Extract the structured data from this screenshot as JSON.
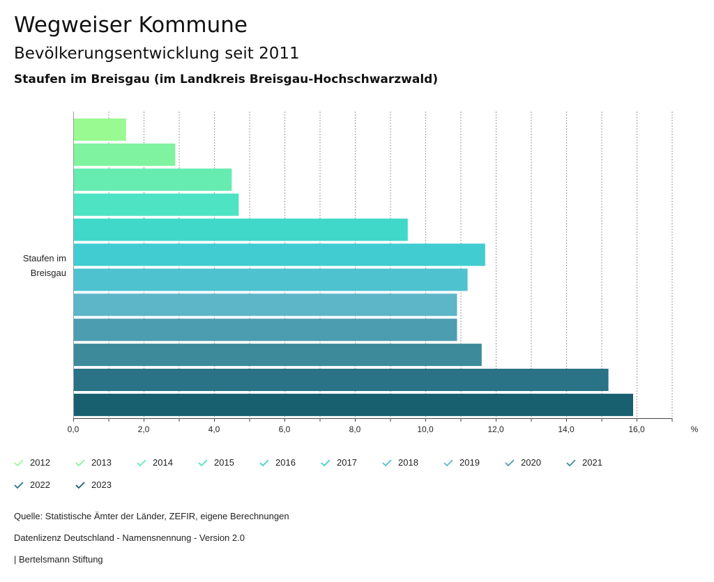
{
  "header": {
    "title": "Wegweiser Kommune",
    "subtitle": "Bevölkerungsentwicklung seit 2011",
    "place": "Staufen im Breisgau (im Landkreis Breisgau-Hochschwarzwald)"
  },
  "chart_data": {
    "type": "bar",
    "orientation": "horizontal",
    "category_label": [
      "Staufen im",
      "Breisgau"
    ],
    "unit": "%",
    "xlim": [
      0,
      17
    ],
    "ticks": [
      "0,0",
      "2,0",
      "4,0",
      "6,0",
      "8,0",
      "10,0",
      "12,0",
      "14,0",
      "16,0"
    ],
    "grid": true,
    "series": [
      {
        "name": "2012",
        "value": 1.5,
        "color": "#98fa91"
      },
      {
        "name": "2013",
        "value": 2.9,
        "color": "#80f3a0"
      },
      {
        "name": "2014",
        "value": 4.5,
        "color": "#66ebb1"
      },
      {
        "name": "2015",
        "value": 4.7,
        "color": "#4ee3c2"
      },
      {
        "name": "2016",
        "value": 9.5,
        "color": "#3fd8c9"
      },
      {
        "name": "2017",
        "value": 11.7,
        "color": "#40ccd0"
      },
      {
        "name": "2018",
        "value": 11.2,
        "color": "#4fc2cf"
      },
      {
        "name": "2019",
        "value": 10.9,
        "color": "#5db5c8"
      },
      {
        "name": "2020",
        "value": 10.9,
        "color": "#4d9db0"
      },
      {
        "name": "2021",
        "value": 11.6,
        "color": "#3d8a9b"
      },
      {
        "name": "2022",
        "value": 15.2,
        "color": "#2a7285"
      },
      {
        "name": "2023",
        "value": 15.9,
        "color": "#185f70"
      }
    ]
  },
  "footer": {
    "source": "Quelle: Statistische Ämter der Länder, ZEFIR, eigene Berechnungen",
    "license": "Datenlizenz Deutschland - Namensnennung - Version 2.0",
    "publisher": "| Bertelsmann Stiftung"
  }
}
